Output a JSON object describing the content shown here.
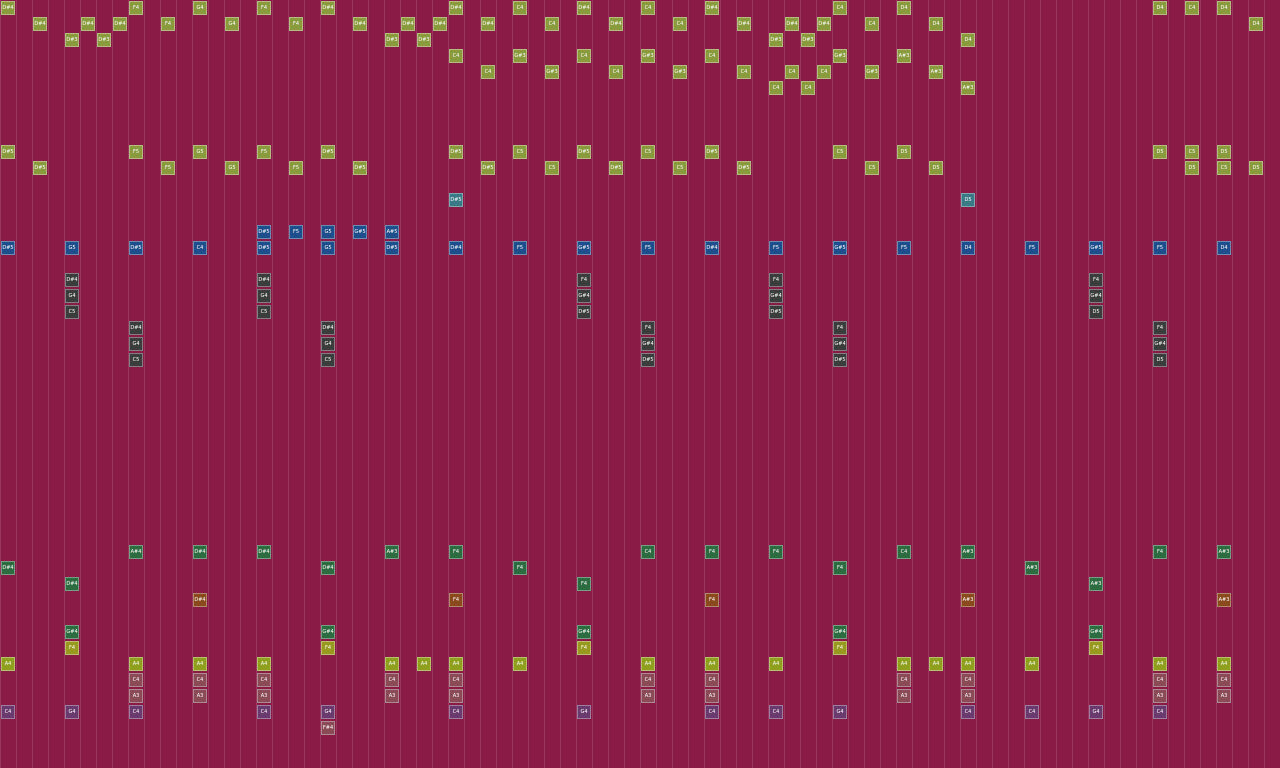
{
  "rows": [
    {
      "color": "#8b9a3c",
      "notes": [
        [
          0,
          "D#4"
        ],
        [
          8,
          "F4"
        ],
        [
          12,
          "G4"
        ],
        [
          16,
          "F4"
        ],
        [
          20,
          "D#4"
        ],
        [
          28,
          "D#4"
        ],
        [
          32,
          "C4"
        ],
        [
          36,
          "D#4"
        ],
        [
          40,
          "C4"
        ],
        [
          44,
          "D#4"
        ],
        [
          52,
          "C4"
        ],
        [
          56,
          "D4"
        ],
        [
          72,
          "D4"
        ],
        [
          74,
          "C4"
        ],
        [
          76,
          "D4"
        ]
      ]
    },
    {
      "color": "#8b9a3c",
      "notes": [
        [
          2,
          "D#4"
        ],
        [
          5,
          "D#4"
        ],
        [
          7,
          "D#4"
        ],
        [
          10,
          "F4"
        ],
        [
          14,
          "G4"
        ],
        [
          18,
          "F4"
        ],
        [
          22,
          "D#4"
        ],
        [
          25,
          "D#4"
        ],
        [
          27,
          "D#4"
        ],
        [
          30,
          "D#4"
        ],
        [
          34,
          "C4"
        ],
        [
          38,
          "D#4"
        ],
        [
          42,
          "C4"
        ],
        [
          46,
          "D#4"
        ],
        [
          49,
          "D#4"
        ],
        [
          51,
          "D#4"
        ],
        [
          54,
          "C4"
        ],
        [
          58,
          "D4"
        ],
        [
          78,
          "D4"
        ]
      ]
    },
    {
      "color": "#8b9a3c",
      "notes": [
        [
          4,
          "D#3"
        ],
        [
          6,
          "D#3"
        ],
        [
          24,
          "D#3"
        ],
        [
          26,
          "D#3"
        ],
        [
          48,
          "D#3"
        ],
        [
          50,
          "D#3"
        ],
        [
          60,
          "D4"
        ]
      ]
    },
    {
      "color": "#8b9a3c",
      "notes": [
        [
          28,
          "C4"
        ],
        [
          32,
          "G#3"
        ],
        [
          36,
          "C4"
        ],
        [
          40,
          "G#3"
        ],
        [
          44,
          "C4"
        ],
        [
          52,
          "G#3"
        ],
        [
          56,
          "A#3"
        ]
      ]
    },
    {
      "color": "#8b9a3c",
      "notes": [
        [
          30,
          "C4"
        ],
        [
          34,
          "G#3"
        ],
        [
          38,
          "C4"
        ],
        [
          42,
          "G#3"
        ],
        [
          46,
          "C4"
        ],
        [
          49,
          "C4"
        ],
        [
          51,
          "C4"
        ],
        [
          54,
          "G#3"
        ],
        [
          58,
          "A#3"
        ]
      ]
    },
    {
      "color": "#8b9a3c",
      "notes": [
        [
          48,
          "C4"
        ],
        [
          50,
          "C4"
        ],
        [
          60,
          "A#3"
        ]
      ]
    },
    {
      "notes": []
    },
    {
      "notes": []
    },
    {
      "notes": []
    },
    {
      "color": "#8b9a3c",
      "notes": [
        [
          0,
          "D#5"
        ],
        [
          8,
          "F5"
        ],
        [
          12,
          "G5"
        ],
        [
          16,
          "F5"
        ],
        [
          20,
          "D#5"
        ],
        [
          28,
          "D#5"
        ],
        [
          32,
          "C5"
        ],
        [
          36,
          "D#5"
        ],
        [
          40,
          "C5"
        ],
        [
          44,
          "D#5"
        ],
        [
          52,
          "C5"
        ],
        [
          56,
          "D5"
        ],
        [
          72,
          "D5"
        ],
        [
          74,
          "C5"
        ],
        [
          76,
          "D5"
        ]
      ]
    },
    {
      "color": "#8b9a3c",
      "notes": [
        [
          2,
          "D#5"
        ],
        [
          10,
          "F5"
        ],
        [
          14,
          "G5"
        ],
        [
          18,
          "F5"
        ],
        [
          22,
          "D#5"
        ],
        [
          30,
          "D#5"
        ],
        [
          34,
          "C5"
        ],
        [
          38,
          "D#5"
        ],
        [
          42,
          "C5"
        ],
        [
          46,
          "D#5"
        ],
        [
          54,
          "C5"
        ],
        [
          58,
          "D5"
        ],
        [
          74,
          "D5"
        ],
        [
          76,
          "C5"
        ],
        [
          78,
          "D5"
        ]
      ]
    },
    {
      "notes": []
    },
    {
      "color": "#3a7a86",
      "notes": [
        [
          28,
          "D#5"
        ],
        [
          60,
          "D5"
        ]
      ]
    },
    {
      "notes": []
    },
    {
      "color": "#1e4f8c",
      "notes": [
        [
          16,
          "D#5"
        ],
        [
          18,
          "F5"
        ],
        [
          20,
          "G5"
        ],
        [
          22,
          "G#5"
        ],
        [
          24,
          "A#5"
        ]
      ]
    },
    {
      "color": "#1e4f8c",
      "notes": [
        [
          0,
          "D#5"
        ],
        [
          4,
          "G5"
        ],
        [
          8,
          "D#5"
        ],
        [
          12,
          "C4"
        ],
        [
          16,
          "D#5"
        ],
        [
          20,
          "G5"
        ],
        [
          24,
          "D#5"
        ],
        [
          28,
          "D#4"
        ],
        [
          32,
          "F5"
        ],
        [
          36,
          "G#5"
        ],
        [
          40,
          "F5"
        ],
        [
          44,
          "D#4"
        ],
        [
          48,
          "F5"
        ],
        [
          52,
          "G#5"
        ],
        [
          56,
          "F5"
        ],
        [
          60,
          "D4"
        ],
        [
          64,
          "F5"
        ],
        [
          68,
          "G#5"
        ],
        [
          72,
          "F5"
        ],
        [
          76,
          "D4"
        ]
      ]
    },
    {
      "notes": []
    },
    {
      "color": "#3c3c3c",
      "notes": [
        [
          4,
          "D#4"
        ],
        [
          16,
          "D#4"
        ],
        [
          36,
          "F4"
        ],
        [
          48,
          "F4"
        ],
        [
          68,
          "F4"
        ]
      ]
    },
    {
      "color": "#3c3c3c",
      "notes": [
        [
          4,
          "G4"
        ],
        [
          16,
          "G4"
        ],
        [
          36,
          "G#4"
        ],
        [
          48,
          "G#4"
        ],
        [
          68,
          "G#4"
        ]
      ]
    },
    {
      "color": "#3c3c3c",
      "notes": [
        [
          4,
          "C5"
        ],
        [
          16,
          "C5"
        ],
        [
          36,
          "D#5"
        ],
        [
          48,
          "D#5"
        ],
        [
          68,
          "D5"
        ]
      ]
    },
    {
      "color": "#3c3c3c",
      "notes": [
        [
          8,
          "D#4"
        ],
        [
          20,
          "D#4"
        ],
        [
          40,
          "F4"
        ],
        [
          52,
          "F4"
        ],
        [
          72,
          "F4"
        ]
      ]
    },
    {
      "color": "#3c3c3c",
      "notes": [
        [
          8,
          "G4"
        ],
        [
          20,
          "G4"
        ],
        [
          40,
          "G#4"
        ],
        [
          52,
          "G#4"
        ],
        [
          72,
          "G#4"
        ]
      ]
    },
    {
      "color": "#3c3c3c",
      "notes": [
        [
          8,
          "C5"
        ],
        [
          20,
          "C5"
        ],
        [
          40,
          "D#5"
        ],
        [
          52,
          "D#5"
        ],
        [
          72,
          "D5"
        ]
      ]
    },
    {
      "notes": []
    },
    {
      "notes": []
    },
    {
      "notes": []
    },
    {
      "notes": []
    },
    {
      "notes": []
    },
    {
      "notes": []
    },
    {
      "notes": []
    },
    {
      "notes": []
    },
    {
      "notes": []
    },
    {
      "notes": []
    },
    {
      "notes": []
    },
    {
      "color": "#2d6b40",
      "notes": [
        [
          8,
          "A#4"
        ],
        [
          12,
          "D#4"
        ],
        [
          16,
          "D#4"
        ],
        [
          24,
          "A#3"
        ],
        [
          28,
          "F4"
        ],
        [
          40,
          "C4"
        ],
        [
          44,
          "F4"
        ],
        [
          48,
          "F4"
        ],
        [
          56,
          "C4"
        ],
        [
          60,
          "A#3"
        ],
        [
          72,
          "F4"
        ],
        [
          76,
          "A#3"
        ]
      ]
    },
    {
      "color": "#2d6b40",
      "notes": [
        [
          0,
          "D#4"
        ],
        [
          20,
          "D#4"
        ],
        [
          32,
          "F4"
        ],
        [
          52,
          "F4"
        ],
        [
          64,
          "A#3"
        ]
      ]
    },
    {
      "color": "#2d6b40",
      "notes": [
        [
          4,
          "D#4"
        ],
        [
          36,
          "F4"
        ],
        [
          68,
          "A#3"
        ]
      ]
    },
    {
      "color": "#8a4a1e",
      "notes": [
        [
          12,
          "D#4"
        ],
        [
          28,
          "F4"
        ],
        [
          44,
          "F4"
        ],
        [
          60,
          "A#3"
        ],
        [
          76,
          "A#3"
        ]
      ]
    },
    {
      "notes": []
    },
    {
      "color": "#2d6b40",
      "notes": [
        [
          4,
          "G#4"
        ],
        [
          20,
          "G#4"
        ],
        [
          36,
          "G#4"
        ],
        [
          52,
          "G#4"
        ],
        [
          68,
          "G#4"
        ]
      ]
    },
    {
      "color": "#979a1e",
      "notes": [
        [
          4,
          "F4"
        ],
        [
          20,
          "F4"
        ],
        [
          36,
          "F4"
        ],
        [
          52,
          "F4"
        ],
        [
          68,
          "F4"
        ]
      ]
    },
    {
      "color": "#8fa01e",
      "notes": [
        [
          0,
          "A4"
        ],
        [
          8,
          "A4"
        ],
        [
          12,
          "A4"
        ],
        [
          16,
          "A4"
        ],
        [
          24,
          "A4"
        ],
        [
          26,
          "A4"
        ],
        [
          28,
          "A4"
        ],
        [
          32,
          "A4"
        ],
        [
          40,
          "A4"
        ],
        [
          44,
          "A4"
        ],
        [
          48,
          "A4"
        ],
        [
          56,
          "A4"
        ],
        [
          58,
          "A4"
        ],
        [
          60,
          "A4"
        ],
        [
          64,
          "A4"
        ],
        [
          72,
          "A4"
        ],
        [
          76,
          "A4"
        ]
      ]
    },
    {
      "color": "#8a4a56",
      "notes": [
        [
          8,
          "C4"
        ],
        [
          12,
          "C4"
        ],
        [
          16,
          "C4"
        ],
        [
          24,
          "C4"
        ],
        [
          28,
          "C4"
        ],
        [
          40,
          "C4"
        ],
        [
          44,
          "C4"
        ],
        [
          56,
          "C4"
        ],
        [
          60,
          "C4"
        ],
        [
          72,
          "C4"
        ],
        [
          76,
          "C4"
        ]
      ]
    },
    {
      "color": "#8a4a56",
      "notes": [
        [
          8,
          "A3"
        ],
        [
          12,
          "A3"
        ],
        [
          16,
          "A3"
        ],
        [
          24,
          "A3"
        ],
        [
          28,
          "A3"
        ],
        [
          40,
          "A3"
        ],
        [
          44,
          "A3"
        ],
        [
          56,
          "A3"
        ],
        [
          60,
          "A3"
        ],
        [
          72,
          "A3"
        ],
        [
          76,
          "A3"
        ]
      ]
    },
    {
      "color": "#6a3a6e",
      "notes": [
        [
          0,
          "C4"
        ],
        [
          4,
          "G4"
        ],
        [
          8,
          "C4"
        ],
        [
          16,
          "C4"
        ],
        [
          20,
          "G4"
        ],
        [
          28,
          "C4"
        ],
        [
          36,
          "G4"
        ],
        [
          44,
          "C4"
        ],
        [
          48,
          "C4"
        ],
        [
          52,
          "G4"
        ],
        [
          60,
          "C4"
        ],
        [
          64,
          "C4"
        ],
        [
          68,
          "G4"
        ],
        [
          72,
          "C4"
        ]
      ]
    },
    {
      "color": "#8a4a56",
      "notes": [
        [
          20,
          "F#4"
        ]
      ]
    }
  ]
}
